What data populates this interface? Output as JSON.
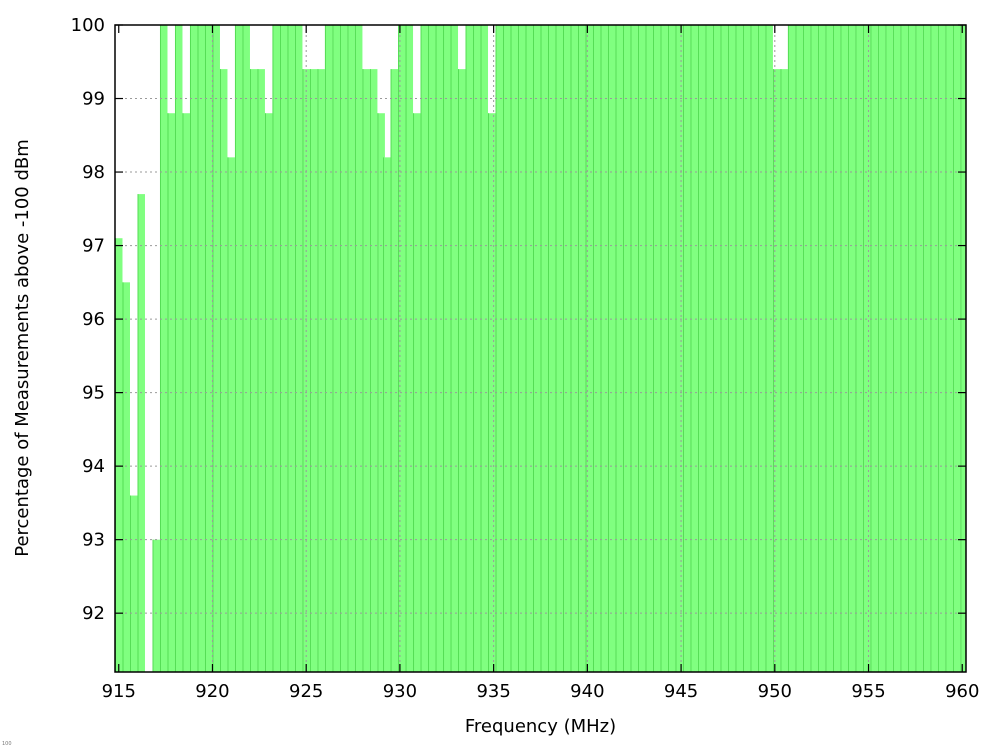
{
  "chart_data": {
    "type": "bar",
    "title": "",
    "xlabel": "Frequency (MHz)",
    "ylabel": "Percentage of Measurements above -100 dBm",
    "xlim": [
      914.8,
      960.2
    ],
    "ylim": [
      91.2,
      100
    ],
    "xticks": [
      "915",
      "920",
      "925",
      "930",
      "935",
      "940",
      "945",
      "950",
      "955",
      "960"
    ],
    "yticks": [
      "92",
      "93",
      "94",
      "95",
      "96",
      "97",
      "98",
      "99",
      "100"
    ],
    "grid": true,
    "bar_color": "#80ff80",
    "bar_edge_color": "#55dd55",
    "bar_width_mhz": 0.4,
    "bars": [
      {
        "x": 915.0,
        "y": 97.1
      },
      {
        "x": 915.4,
        "y": 96.5
      },
      {
        "x": 915.8,
        "y": 93.6
      },
      {
        "x": 916.2,
        "y": 97.7
      },
      {
        "x": 916.6,
        "y": 91.2
      },
      {
        "x": 917.0,
        "y": 93.0
      },
      {
        "x": 917.4,
        "y": 100
      },
      {
        "x": 917.8,
        "y": 98.8
      },
      {
        "x": 918.2,
        "y": 100
      },
      {
        "x": 918.6,
        "y": 98.8
      },
      {
        "x": 919.0,
        "y": 100
      },
      {
        "x": 919.4,
        "y": 100
      },
      {
        "x": 919.8,
        "y": 100
      },
      {
        "x": 920.2,
        "y": 100
      },
      {
        "x": 920.6,
        "y": 99.4
      },
      {
        "x": 921.0,
        "y": 98.2
      },
      {
        "x": 921.4,
        "y": 100
      },
      {
        "x": 921.8,
        "y": 100
      },
      {
        "x": 922.2,
        "y": 99.4
      },
      {
        "x": 922.6,
        "y": 99.4
      },
      {
        "x": 923.0,
        "y": 98.8
      },
      {
        "x": 923.4,
        "y": 100
      },
      {
        "x": 923.8,
        "y": 100
      },
      {
        "x": 924.2,
        "y": 100
      },
      {
        "x": 924.6,
        "y": 100
      },
      {
        "x": 925.0,
        "y": 99.4
      },
      {
        "x": 925.4,
        "y": 99.4
      },
      {
        "x": 925.8,
        "y": 99.4
      },
      {
        "x": 926.2,
        "y": 100
      },
      {
        "x": 926.6,
        "y": 100
      },
      {
        "x": 927.0,
        "y": 100
      },
      {
        "x": 927.4,
        "y": 100
      },
      {
        "x": 927.8,
        "y": 100
      },
      {
        "x": 928.2,
        "y": 99.4
      },
      {
        "x": 928.6,
        "y": 99.4
      },
      {
        "x": 929.0,
        "y": 98.8
      },
      {
        "x": 929.3,
        "y": 98.2
      },
      {
        "x": 929.7,
        "y": 99.4
      },
      {
        "x": 930.1,
        "y": 100
      },
      {
        "x": 930.5,
        "y": 100
      },
      {
        "x": 930.9,
        "y": 98.8
      },
      {
        "x": 931.3,
        "y": 100
      },
      {
        "x": 931.7,
        "y": 100
      },
      {
        "x": 932.1,
        "y": 100
      },
      {
        "x": 932.5,
        "y": 100
      },
      {
        "x": 932.9,
        "y": 100
      },
      {
        "x": 933.3,
        "y": 99.4
      },
      {
        "x": 933.7,
        "y": 100
      },
      {
        "x": 934.1,
        "y": 100
      },
      {
        "x": 934.5,
        "y": 100
      },
      {
        "x": 934.9,
        "y": 98.8
      },
      {
        "x": 935.3,
        "y": 100
      },
      {
        "x": 935.7,
        "y": 100
      },
      {
        "x": 936.1,
        "y": 100
      },
      {
        "x": 936.5,
        "y": 100
      },
      {
        "x": 936.9,
        "y": 100
      },
      {
        "x": 937.3,
        "y": 100
      },
      {
        "x": 937.7,
        "y": 100
      },
      {
        "x": 938.1,
        "y": 100
      },
      {
        "x": 938.5,
        "y": 100
      },
      {
        "x": 938.9,
        "y": 100
      },
      {
        "x": 939.3,
        "y": 100
      },
      {
        "x": 939.7,
        "y": 100
      },
      {
        "x": 940.1,
        "y": 100
      },
      {
        "x": 940.5,
        "y": 100
      },
      {
        "x": 940.9,
        "y": 100
      },
      {
        "x": 941.3,
        "y": 100
      },
      {
        "x": 941.7,
        "y": 100
      },
      {
        "x": 942.1,
        "y": 100
      },
      {
        "x": 942.5,
        "y": 100
      },
      {
        "x": 942.9,
        "y": 100
      },
      {
        "x": 943.3,
        "y": 100
      },
      {
        "x": 943.7,
        "y": 100
      },
      {
        "x": 944.1,
        "y": 100
      },
      {
        "x": 944.5,
        "y": 100
      },
      {
        "x": 944.9,
        "y": 100
      },
      {
        "x": 945.3,
        "y": 100
      },
      {
        "x": 945.7,
        "y": 100
      },
      {
        "x": 946.1,
        "y": 100
      },
      {
        "x": 946.5,
        "y": 100
      },
      {
        "x": 946.9,
        "y": 100
      },
      {
        "x": 947.3,
        "y": 100
      },
      {
        "x": 947.7,
        "y": 100
      },
      {
        "x": 948.1,
        "y": 100
      },
      {
        "x": 948.5,
        "y": 100
      },
      {
        "x": 948.9,
        "y": 100
      },
      {
        "x": 949.3,
        "y": 100
      },
      {
        "x": 949.7,
        "y": 100
      },
      {
        "x": 950.1,
        "y": 99.4
      },
      {
        "x": 950.5,
        "y": 99.4
      },
      {
        "x": 950.9,
        "y": 100
      },
      {
        "x": 951.3,
        "y": 100
      },
      {
        "x": 951.7,
        "y": 100
      },
      {
        "x": 952.1,
        "y": 100
      },
      {
        "x": 952.5,
        "y": 100
      },
      {
        "x": 952.9,
        "y": 100
      },
      {
        "x": 953.3,
        "y": 100
      },
      {
        "x": 953.7,
        "y": 100
      },
      {
        "x": 954.1,
        "y": 100
      },
      {
        "x": 954.5,
        "y": 100
      },
      {
        "x": 954.9,
        "y": 100
      },
      {
        "x": 955.3,
        "y": 100
      },
      {
        "x": 955.7,
        "y": 100
      },
      {
        "x": 956.1,
        "y": 100
      },
      {
        "x": 956.5,
        "y": 100
      },
      {
        "x": 956.9,
        "y": 100
      },
      {
        "x": 957.3,
        "y": 100
      },
      {
        "x": 957.7,
        "y": 100
      },
      {
        "x": 958.1,
        "y": 100
      },
      {
        "x": 958.5,
        "y": 100
      },
      {
        "x": 958.9,
        "y": 100
      },
      {
        "x": 959.3,
        "y": 100
      },
      {
        "x": 959.7,
        "y": 100
      },
      {
        "x": 960.1,
        "y": 100
      }
    ]
  },
  "corner_mark": "100"
}
